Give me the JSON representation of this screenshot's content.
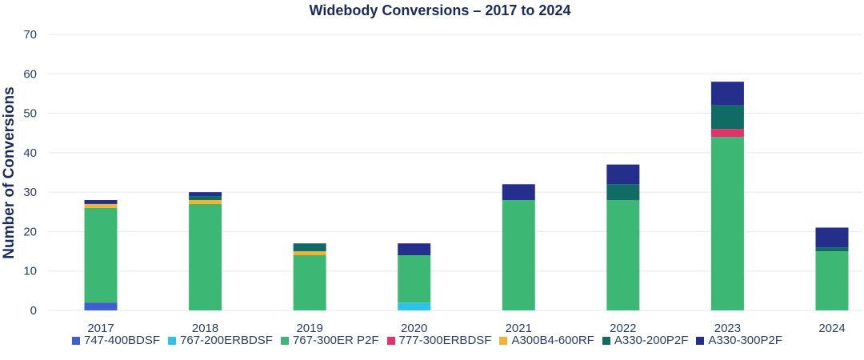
{
  "chart_data": {
    "type": "bar",
    "stacked": true,
    "title": "Widebody Conversions – 2017 to 2024",
    "xlabel": "",
    "ylabel": "Number of Conversions",
    "ylim": [
      0,
      70
    ],
    "yticks": [
      0,
      10,
      20,
      30,
      40,
      50,
      60,
      70
    ],
    "grid": true,
    "legend_position": "bottom",
    "categories": [
      "2017",
      "2018",
      "2019",
      "2020",
      "2021",
      "2022",
      "2023",
      "2024"
    ],
    "series": [
      {
        "name": "747-400BDSF",
        "color": "#3f5fcf",
        "values": [
          2,
          0,
          0,
          0,
          0,
          0,
          0,
          0
        ]
      },
      {
        "name": "767-200ERBDSF",
        "color": "#2ec3e6",
        "values": [
          0,
          0,
          0,
          2,
          0,
          0,
          0,
          0
        ]
      },
      {
        "name": "767-300ER P2F",
        "color": "#3db874",
        "values": [
          24,
          27,
          14,
          12,
          28,
          28,
          44,
          15
        ]
      },
      {
        "name": "777-300ERBDSF",
        "color": "#e0336a",
        "values": [
          0,
          0,
          0,
          0,
          0,
          0,
          2,
          0
        ]
      },
      {
        "name": "A300B4-600RF",
        "color": "#f2b233",
        "values": [
          1,
          1,
          1,
          0,
          0,
          0,
          0,
          0
        ]
      },
      {
        "name": "A330-200P2F",
        "color": "#0f6b63",
        "values": [
          0,
          1,
          2,
          0,
          0,
          4,
          6,
          1
        ]
      },
      {
        "name": "A330-300P2F",
        "color": "#232f8a",
        "values": [
          1,
          1,
          0,
          3,
          4,
          5,
          6,
          5
        ]
      }
    ]
  }
}
